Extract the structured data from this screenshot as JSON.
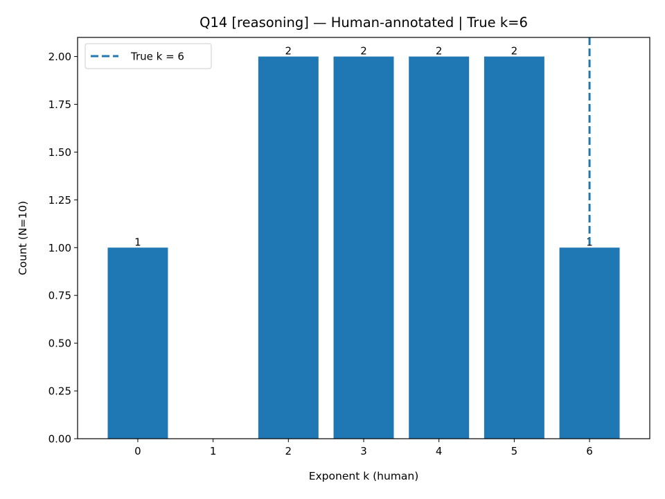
{
  "chart_data": {
    "type": "bar",
    "title": "Q14 [reasoning] — Human-annotated | True k=6",
    "xlabel": "Exponent k (human)",
    "ylabel": "Count (N=10)",
    "categories": [
      "0",
      "1",
      "2",
      "3",
      "4",
      "5",
      "6"
    ],
    "x": [
      0,
      1,
      2,
      3,
      4,
      5,
      6
    ],
    "values": [
      1,
      0,
      2,
      2,
      2,
      2,
      1
    ],
    "data_labels": [
      "1",
      "",
      "2",
      "2",
      "2",
      "2",
      "1"
    ],
    "xlim": [
      -0.8,
      6.8
    ],
    "ylim": [
      0,
      2.1
    ],
    "yticks": [
      0,
      0.25,
      0.5,
      0.75,
      1.0,
      1.25,
      1.5,
      1.75,
      2.0
    ],
    "ytick_labels": [
      "0.00",
      "0.25",
      "0.50",
      "0.75",
      "1.00",
      "1.25",
      "1.50",
      "1.75",
      "2.00"
    ],
    "bar_color": "#1f77b4",
    "reference_line": {
      "x": 6,
      "style": "dashed",
      "color": "#1f77b4",
      "label": "True k = 6"
    },
    "legend": {
      "position": "top-left",
      "entries": [
        "True k = 6"
      ]
    },
    "grid": false
  }
}
